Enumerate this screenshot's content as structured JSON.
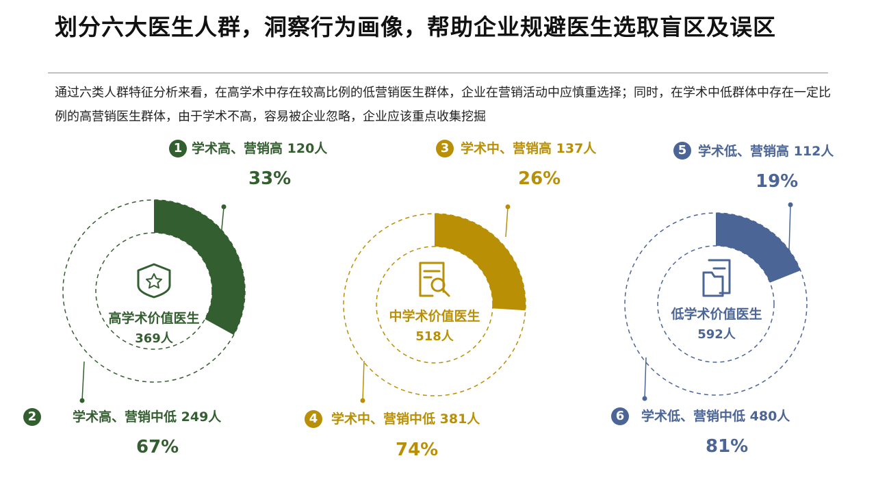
{
  "title": "划分六大医生人群，洞察行为画像，帮助企业规避医生选取盲区及误区",
  "subtitle": "通过六类人群特征分析来看，在高学术中存在较高比例的低营销医生群体，企业在营销活动中应慎重选择；同时，在学术中低群体中存在一定比例的高营销医生群体，由于学术不高，容易被企业忽略，企业应该重点收集挖掘",
  "colors": {
    "high": "#335e2f",
    "mid": "#b88f05",
    "low": "#4a6596"
  },
  "chart_data": [
    {
      "type": "pie",
      "center_label": "高学术价值医生",
      "total": "369人",
      "icon": "star-badge-icon",
      "slices": [
        {
          "badge": "1",
          "label": "学术高、营销高",
          "count": "120人",
          "percent": 33,
          "percent_label": "33%"
        },
        {
          "badge": "2",
          "label": "学术高、营销中低",
          "count": "249人",
          "percent": 67,
          "percent_label": "67%"
        }
      ]
    },
    {
      "type": "pie",
      "center_label": "中学术价值医生",
      "total": "518人",
      "icon": "document-search-icon",
      "slices": [
        {
          "badge": "3",
          "label": "学术中、营销高",
          "count": "137人",
          "percent": 26,
          "percent_label": "26%"
        },
        {
          "badge": "4",
          "label": "学术中、营销中低",
          "count": "381人",
          "percent": 74,
          "percent_label": "74%"
        }
      ]
    },
    {
      "type": "pie",
      "center_label": "低学术价值医生",
      "total": "592人",
      "icon": "folder-document-icon",
      "slices": [
        {
          "badge": "5",
          "label": "学术低、营销高",
          "count": "112人",
          "percent": 19,
          "percent_label": "19%"
        },
        {
          "badge": "6",
          "label": "学术低、营销中低",
          "count": "480人",
          "percent": 81,
          "percent_label": "81%"
        }
      ]
    }
  ]
}
